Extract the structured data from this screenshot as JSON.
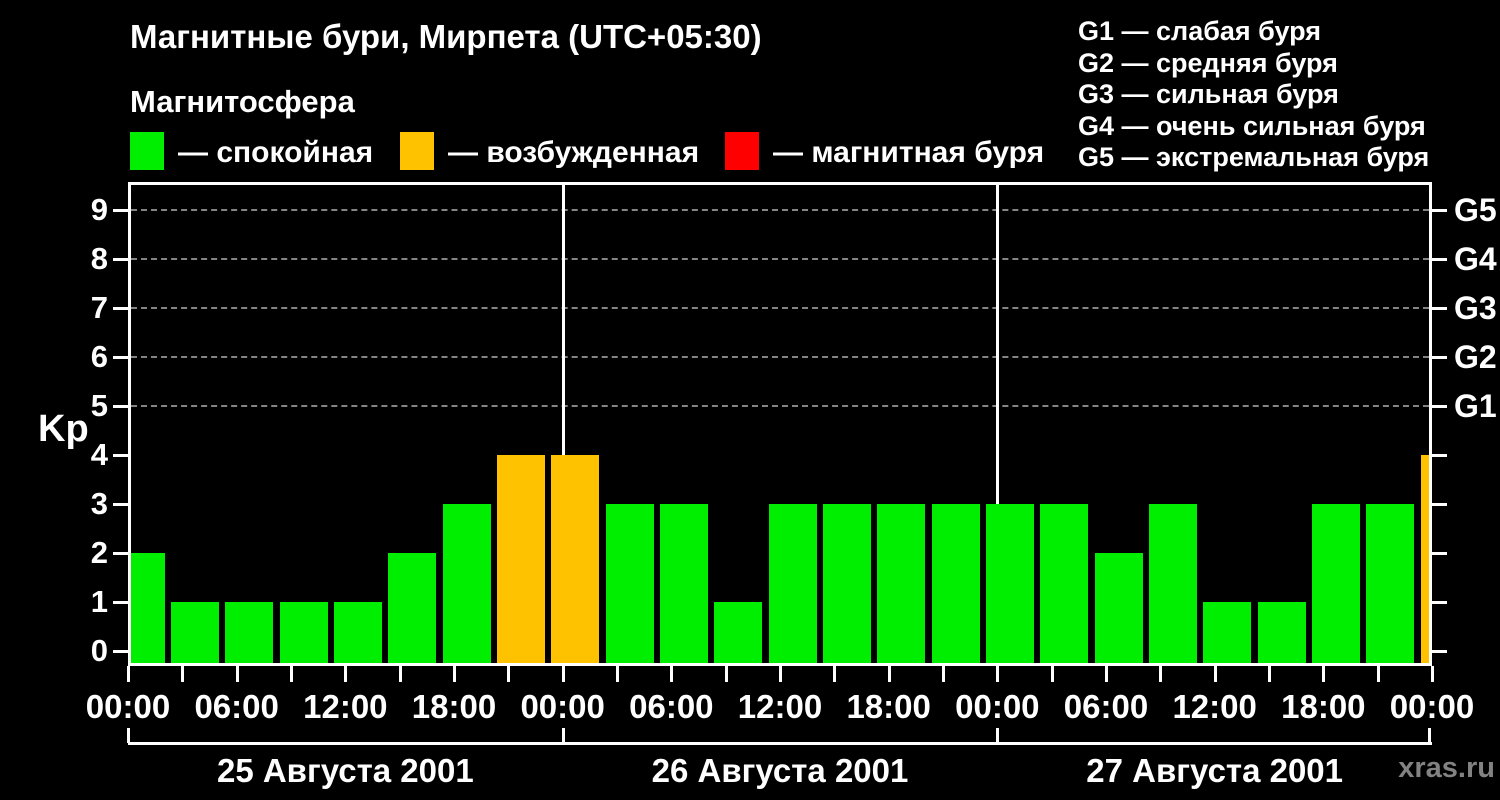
{
  "title": "Магнитные бури, Мирпета (UTC+05:30)",
  "subtitle": "Магнитосфера",
  "legend": {
    "quiet": {
      "label": "— спокойная",
      "color": "#00EE00"
    },
    "excited": {
      "label": "— возбужденная",
      "color": "#FFC200"
    },
    "storm": {
      "label": "— магнитная буря",
      "color": "#FF0000"
    }
  },
  "storm_scale": [
    "G1 — слабая буря",
    "G2 — средняя буря",
    "G3 — сильная буря",
    "G4 — очень сильная буря",
    "G5 — экстремальная буря"
  ],
  "watermark": "xras.ru",
  "chart_data": {
    "type": "bar",
    "ylabel": "Kp",
    "ylim": [
      0,
      9
    ],
    "yticks": [
      0,
      1,
      2,
      3,
      4,
      5,
      6,
      7,
      8,
      9
    ],
    "grid_levels": [
      5,
      6,
      7,
      8,
      9
    ],
    "right_axis": [
      {
        "kp": 5,
        "label": "G1"
      },
      {
        "kp": 6,
        "label": "G2"
      },
      {
        "kp": 7,
        "label": "G3"
      },
      {
        "kp": 8,
        "label": "G4"
      },
      {
        "kp": 9,
        "label": "G5"
      }
    ],
    "hours_per_bar": 3,
    "x_tick_step_hours": 3,
    "x_label_step_hours": 6,
    "x_tick_labels": [
      "00:00",
      "06:00",
      "12:00",
      "18:00",
      "00:00",
      "06:00",
      "12:00",
      "18:00",
      "00:00",
      "06:00",
      "12:00",
      "18:00",
      "00:00"
    ],
    "days": [
      {
        "date": "25 Августа 2001",
        "values": [
          2,
          1,
          1,
          1,
          1,
          2,
          3,
          4
        ]
      },
      {
        "date": "26 Августа 2001",
        "values": [
          4,
          3,
          3,
          1,
          3,
          3,
          3,
          3
        ]
      },
      {
        "date": "27 Августа 2001",
        "values": [
          3,
          3,
          2,
          3,
          1,
          1,
          3,
          3
        ]
      }
    ],
    "partial_next_interval_value": 4,
    "color_thresholds": {
      "excited_min_kp": 4,
      "storm_min_kp": 5
    },
    "grid": true,
    "legend_position": "top"
  }
}
